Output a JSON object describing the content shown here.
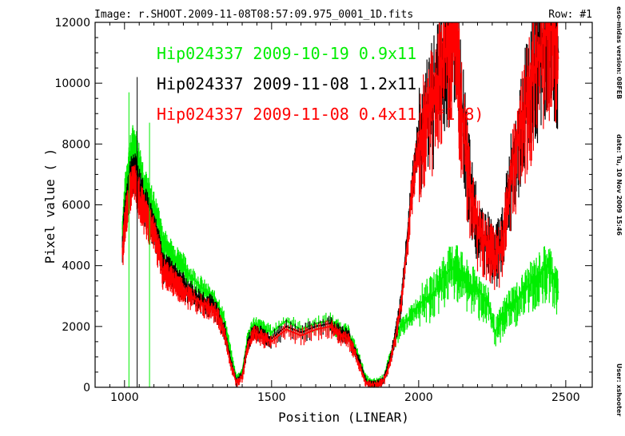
{
  "header": {
    "image_label": "Image:  r.SHOOT.2009-11-08T08:57:09.975_0001_1D.fits",
    "row_label": "Row:  #1"
  },
  "side_info": {
    "version": "eso-midas version: 08FEB",
    "date": "date: Tu, 10 Nov 2009 15:46",
    "user": "User: xshooter"
  },
  "chart_data": {
    "type": "line",
    "xlabel": "Position  (LINEAR)",
    "ylabel": "Pixel  value  ( )",
    "xlim": [
      900,
      2590
    ],
    "ylim": [
      0,
      12000
    ],
    "xticks": [
      1000,
      1500,
      2000,
      2500
    ],
    "yticks": [
      0,
      2000,
      4000,
      6000,
      8000,
      10000,
      12000
    ],
    "grid": false,
    "legend_placement": "top-left",
    "series": [
      {
        "name": "Hip024337  2009-10-19  0.9x11",
        "color": "#00ee00",
        "x": [
          993,
          1000,
          1010,
          1020,
          1030,
          1040,
          1050,
          1060,
          1070,
          1080,
          1090,
          1100,
          1110,
          1120,
          1130,
          1140,
          1150,
          1160,
          1170,
          1180,
          1190,
          1200,
          1220,
          1240,
          1260,
          1280,
          1300,
          1320,
          1340,
          1360,
          1380,
          1400,
          1420,
          1440,
          1460,
          1480,
          1500,
          1550,
          1600,
          1650,
          1700,
          1720,
          1740,
          1760,
          1780,
          1800,
          1820,
          1840,
          1860,
          1880,
          1900,
          1920,
          1940,
          1960,
          1980,
          2000,
          2020,
          2040,
          2060,
          2080,
          2100,
          2120,
          2130,
          2140,
          2160,
          2180,
          2200,
          2220,
          2240,
          2260,
          2280,
          2300,
          2320,
          2340,
          2360,
          2380,
          2400,
          2420,
          2440,
          2460,
          2475
        ],
        "y": [
          5200,
          6200,
          7100,
          7600,
          8000,
          7800,
          7400,
          7000,
          6600,
          6300,
          6100,
          5900,
          5600,
          5300,
          4700,
          4700,
          4500,
          4400,
          4300,
          4200,
          4100,
          4000,
          3700,
          3500,
          3300,
          3100,
          2900,
          2700,
          2200,
          1200,
          300,
          500,
          1700,
          2100,
          2000,
          1900,
          1800,
          2200,
          1900,
          2100,
          2200,
          2000,
          1900,
          1800,
          1400,
          900,
          300,
          150,
          200,
          300,
          900,
          1600,
          2000,
          2200,
          2500,
          2700,
          2900,
          3000,
          3200,
          3600,
          3800,
          3950,
          4000,
          3800,
          3500,
          3300,
          3200,
          3000,
          2600,
          1800,
          2200,
          2600,
          2800,
          2900,
          3200,
          3400,
          3600,
          3800,
          4000,
          3600,
          3100
        ]
      },
      {
        "name": "Hip024337  2009-11-08  1.2x11",
        "color": "#000000",
        "x": [
          993,
          1000,
          1010,
          1020,
          1030,
          1040,
          1050,
          1060,
          1070,
          1080,
          1090,
          1100,
          1110,
          1120,
          1130,
          1140,
          1150,
          1160,
          1170,
          1180,
          1190,
          1200,
          1220,
          1240,
          1260,
          1280,
          1300,
          1320,
          1340,
          1360,
          1380,
          1400,
          1420,
          1440,
          1460,
          1480,
          1500,
          1550,
          1600,
          1650,
          1700,
          1720,
          1740,
          1760,
          1780,
          1800,
          1820,
          1840,
          1860,
          1880,
          1900,
          1920,
          1940,
          1960,
          1980,
          2000,
          2020,
          2040,
          2060,
          2080,
          2100,
          2120,
          2130,
          2140,
          2160,
          2180,
          2200,
          2220,
          2240,
          2260,
          2280,
          2300,
          2320,
          2340,
          2360,
          2380,
          2400,
          2420,
          2440,
          2460,
          2475
        ],
        "y": [
          4600,
          5600,
          6400,
          6900,
          7300,
          7000,
          6600,
          6300,
          6000,
          5800,
          5500,
          5300,
          4900,
          4600,
          4000,
          4000,
          3900,
          3800,
          3700,
          3600,
          3500,
          3400,
          3200,
          3000,
          2900,
          2800,
          2700,
          2400,
          1900,
          900,
          200,
          400,
          1500,
          1900,
          1800,
          1700,
          1600,
          2000,
          1800,
          2000,
          2100,
          1900,
          1800,
          1700,
          1300,
          800,
          200,
          100,
          150,
          250,
          800,
          1700,
          2800,
          4800,
          7000,
          8200,
          9000,
          9500,
          10000,
          10800,
          11500,
          12000,
          11800,
          10000,
          8000,
          6300,
          5500,
          5000,
          4800,
          4500,
          4800,
          6000,
          7500,
          8500,
          9300,
          10000,
          10800,
          11500,
          12000,
          12000,
          11000
        ]
      },
      {
        "name": "Hip024337  2009-11-08  0.4x11  (*1.8)",
        "color": "#ff0000",
        "x": [
          993,
          1000,
          1010,
          1020,
          1030,
          1040,
          1050,
          1060,
          1070,
          1080,
          1090,
          1100,
          1110,
          1120,
          1130,
          1140,
          1150,
          1160,
          1170,
          1180,
          1190,
          1200,
          1220,
          1240,
          1260,
          1280,
          1300,
          1320,
          1340,
          1360,
          1380,
          1400,
          1420,
          1440,
          1460,
          1480,
          1500,
          1550,
          1600,
          1650,
          1700,
          1720,
          1740,
          1760,
          1780,
          1800,
          1820,
          1840,
          1860,
          1880,
          1900,
          1920,
          1940,
          1960,
          1980,
          2000,
          2020,
          2040,
          2060,
          2080,
          2100,
          2120,
          2130,
          2140,
          2160,
          2180,
          2200,
          2220,
          2240,
          2260,
          2280,
          2300,
          2320,
          2340,
          2360,
          2380,
          2400,
          2420,
          2440,
          2460,
          2475
        ],
        "y": [
          4400,
          5400,
          6100,
          6600,
          6900,
          6600,
          6300,
          6000,
          5700,
          5500,
          5300,
          5100,
          4700,
          4400,
          3800,
          3800,
          3700,
          3600,
          3500,
          3400,
          3300,
          3200,
          3000,
          2900,
          2800,
          2700,
          2600,
          2300,
          1800,
          800,
          150,
          350,
          1400,
          1800,
          1700,
          1600,
          1500,
          1900,
          1700,
          1900,
          2000,
          1800,
          1700,
          1600,
          1200,
          700,
          150,
          80,
          120,
          200,
          700,
          1600,
          2700,
          4600,
          6800,
          8000,
          8800,
          9300,
          9800,
          10600,
          11300,
          11900,
          11700,
          9800,
          7800,
          6100,
          5300,
          4800,
          4600,
          4300,
          4600,
          5800,
          7300,
          8300,
          9100,
          9800,
          10600,
          11300,
          11900,
          12000,
          10800
        ]
      }
    ],
    "spikes": [
      {
        "x": 1015,
        "y": 9700,
        "color": "#00ee00"
      },
      {
        "x": 1043,
        "y": 10200,
        "color": "#000000"
      },
      {
        "x": 1085,
        "y": 8700,
        "color": "#00ee00"
      }
    ]
  }
}
